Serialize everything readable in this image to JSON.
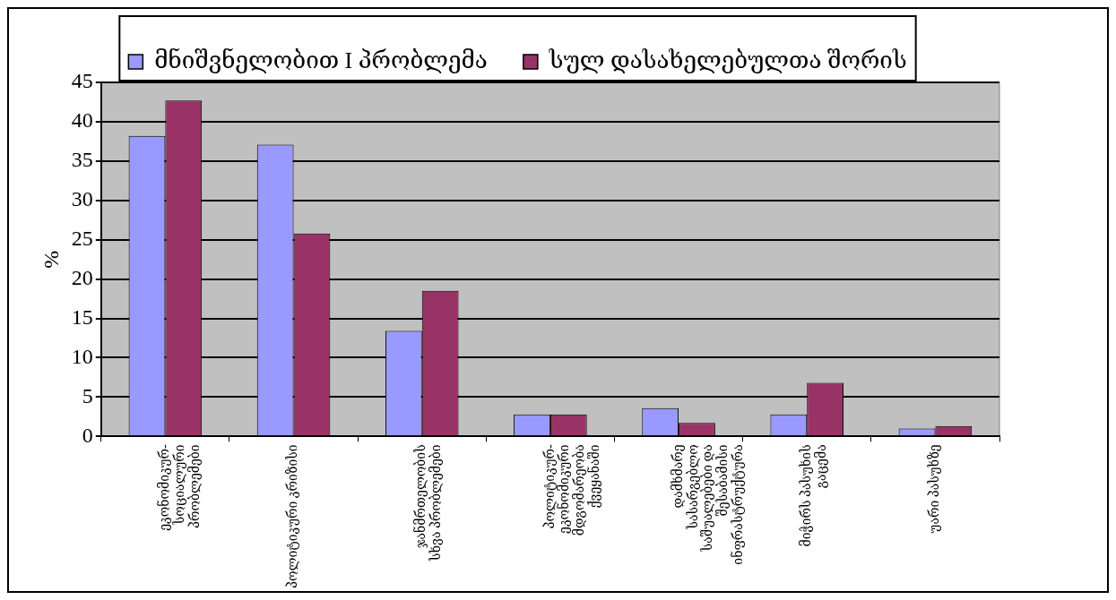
{
  "chart_data": {
    "type": "bar",
    "ylabel": "%",
    "categories": [
      "ეკონომიკურ-\nსოციალური\nპრობლემები",
      "პოლიტიკური კრიზისი",
      "ჯანმრთელობის\nსხვა პრობლემები",
      "პოლიტიკურ-\nეკონომიკური\nმდგომარეობა\nქვეყანაში",
      "დამხმარე\nსასარგებლო\nსაშუალებები და\nშესაბამისი\nინფრასტრუქტურა",
      "მიჭირს პასუხის\nგაცემა",
      "უარი პასუხზე"
    ],
    "series": [
      {
        "name": "მნიშვნელობით I პრობლემა",
        "color": "#9999ff",
        "values": [
          38.2,
          37.1,
          13.4,
          2.8,
          3.6,
          2.8,
          1.0
        ]
      },
      {
        "name": "სულ დასახელებულთა შორის",
        "color": "#993366",
        "values": [
          42.7,
          25.8,
          18.5,
          2.8,
          1.7,
          6.8,
          1.3
        ]
      }
    ],
    "ylim": [
      0,
      45
    ],
    "yticks": [
      0,
      5,
      10,
      15,
      20,
      25,
      30,
      35,
      40,
      45
    ],
    "grid": "y",
    "legend": "top"
  }
}
